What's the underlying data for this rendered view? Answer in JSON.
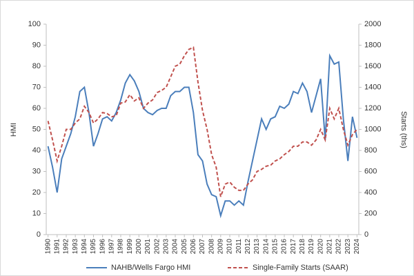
{
  "chart_data": {
    "type": "line",
    "y_label": "HMI",
    "y2_label": "Starts (ths)",
    "x": [
      1990.0,
      1990.5,
      1991.0,
      1991.5,
      1992.0,
      1992.5,
      1993.0,
      1993.5,
      1994.0,
      1994.5,
      1995.0,
      1995.5,
      1996.0,
      1996.5,
      1997.0,
      1997.5,
      1998.0,
      1998.5,
      1999.0,
      1999.5,
      2000.0,
      2000.5,
      2001.0,
      2001.5,
      2002.0,
      2002.5,
      2003.0,
      2003.5,
      2004.0,
      2004.5,
      2005.0,
      2005.5,
      2006.0,
      2006.5,
      2007.0,
      2007.5,
      2008.0,
      2008.5,
      2009.0,
      2009.5,
      2010.0,
      2010.5,
      2011.0,
      2011.5,
      2012.0,
      2012.5,
      2013.0,
      2013.5,
      2014.0,
      2014.5,
      2015.0,
      2015.5,
      2016.0,
      2016.5,
      2017.0,
      2017.5,
      2018.0,
      2018.5,
      2019.0,
      2019.5,
      2020.0,
      2020.5,
      2021.0,
      2021.5,
      2022.0,
      2022.5,
      2023.0,
      2023.5,
      2024.0
    ],
    "series": [
      {
        "name": "NAHB/Wells Fargo HMI",
        "color": "#4a7ebb",
        "dash": false,
        "values": [
          42,
          32,
          20,
          36,
          42,
          48,
          56,
          68,
          70,
          58,
          42,
          48,
          55,
          56,
          54,
          58,
          64,
          72,
          76,
          73,
          68,
          60,
          58,
          57,
          59,
          60,
          60,
          66,
          68,
          68,
          70,
          70,
          58,
          38,
          35,
          24,
          19,
          18,
          9,
          16,
          16,
          14,
          16,
          14,
          25,
          35,
          45,
          55,
          50,
          55,
          56,
          61,
          60,
          62,
          68,
          67,
          72,
          68,
          58,
          66,
          74,
          45,
          85,
          81,
          82,
          55,
          35,
          56,
          46
        ]
      },
      {
        "name": "Single-Family Starts (SAAR)",
        "color": "#c0504d",
        "dash": true,
        "axis": "y2",
        "values": [
          1080,
          900,
          700,
          840,
          1000,
          1000,
          1060,
          1100,
          1220,
          1160,
          1060,
          1100,
          1160,
          1150,
          1120,
          1130,
          1250,
          1260,
          1330,
          1270,
          1300,
          1200,
          1250,
          1280,
          1350,
          1370,
          1400,
          1500,
          1600,
          1620,
          1700,
          1760,
          1780,
          1450,
          1180,
          1000,
          760,
          640,
          360,
          480,
          500,
          450,
          420,
          420,
          480,
          520,
          600,
          620,
          650,
          660,
          700,
          720,
          760,
          790,
          840,
          840,
          880,
          880,
          850,
          900,
          1000,
          900,
          1200,
          1100,
          1200,
          1000,
          850,
          950,
          1000
        ]
      }
    ],
    "xlim": [
      1989.8,
      2024.2
    ],
    "xticks": [
      1990,
      1991,
      1992,
      1993,
      1994,
      1995,
      1996,
      1997,
      1998,
      1999,
      2000,
      2001,
      2002,
      2003,
      2004,
      2005,
      2006,
      2007,
      2008,
      2009,
      2010,
      2011,
      2012,
      2013,
      2014,
      2015,
      2016,
      2017,
      2018,
      2019,
      2020,
      2021,
      2022,
      2023,
      2024
    ],
    "ylim": [
      0,
      100
    ],
    "yticks": [
      0,
      10,
      20,
      30,
      40,
      50,
      60,
      70,
      80,
      90,
      100
    ],
    "y2lim": [
      0,
      2000
    ],
    "y2ticks": [
      0,
      200,
      400,
      600,
      800,
      1000,
      1200,
      1400,
      1600,
      1800,
      2000
    ],
    "legend": "bottom"
  }
}
